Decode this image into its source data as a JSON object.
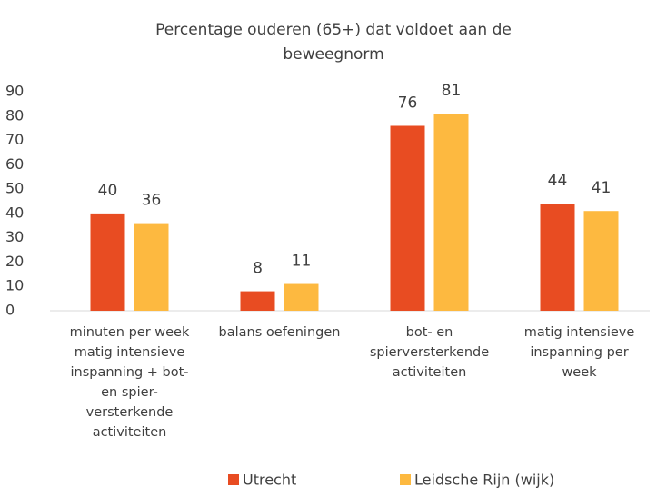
{
  "chart_data": {
    "type": "bar",
    "title": [
      "Percentage ouderen (65+) dat voldoet aan de",
      "beweegnorm"
    ],
    "categories": [
      [
        "minuten per week",
        "matig intensieve",
        "inspanning + bot-",
        "en spier-",
        "versterkende",
        "activiteiten"
      ],
      [
        "balans oefeningen"
      ],
      [
        "bot- en",
        "spierversterkende",
        "activiteiten"
      ],
      [
        "matig intensieve",
        "inspanning per",
        "week"
      ]
    ],
    "series": [
      {
        "name": "Utrecht",
        "color": "#e84c22",
        "values": [
          40,
          8,
          76,
          44
        ]
      },
      {
        "name": "Leidsche Rijn (wijk)",
        "color": "#fdb940",
        "values": [
          36,
          11,
          81,
          41
        ]
      }
    ],
    "ylim": [
      0,
      90
    ],
    "yticks": [
      0,
      10,
      20,
      30,
      40,
      50,
      60,
      70,
      80,
      90
    ],
    "grid": false,
    "legend": "bottom"
  }
}
